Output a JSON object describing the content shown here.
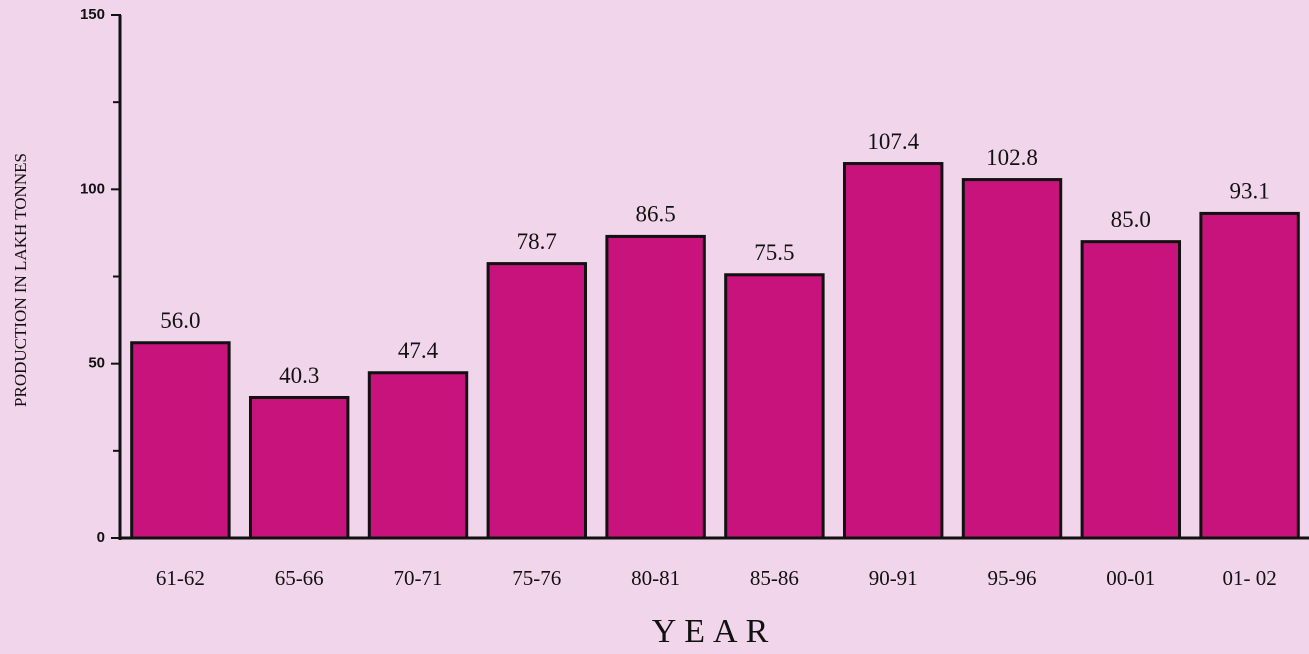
{
  "chart_data": {
    "type": "bar",
    "x_label": "YEAR",
    "y_label": "PRODUCTION IN LAKH TONNES",
    "categories": [
      "61-62",
      "65-66",
      "70-71",
      "75-76",
      "80-81",
      "85-86",
      "90-91",
      "95-96",
      "00-01",
      "01- 02"
    ],
    "values": [
      56.0,
      40.3,
      47.4,
      78.7,
      86.5,
      75.5,
      107.4,
      102.8,
      85.0,
      93.1
    ],
    "value_labels": [
      "56.0",
      "40.3",
      "47.4",
      "78.7",
      "86.5",
      "75.5",
      "107.4",
      "102.8",
      "85.0",
      "93.1"
    ],
    "color": "#c8127c",
    "ylim": [
      0,
      150
    ],
    "yticks": [
      0,
      50,
      100,
      150
    ],
    "yminorticks": [
      25,
      75,
      125
    ]
  }
}
